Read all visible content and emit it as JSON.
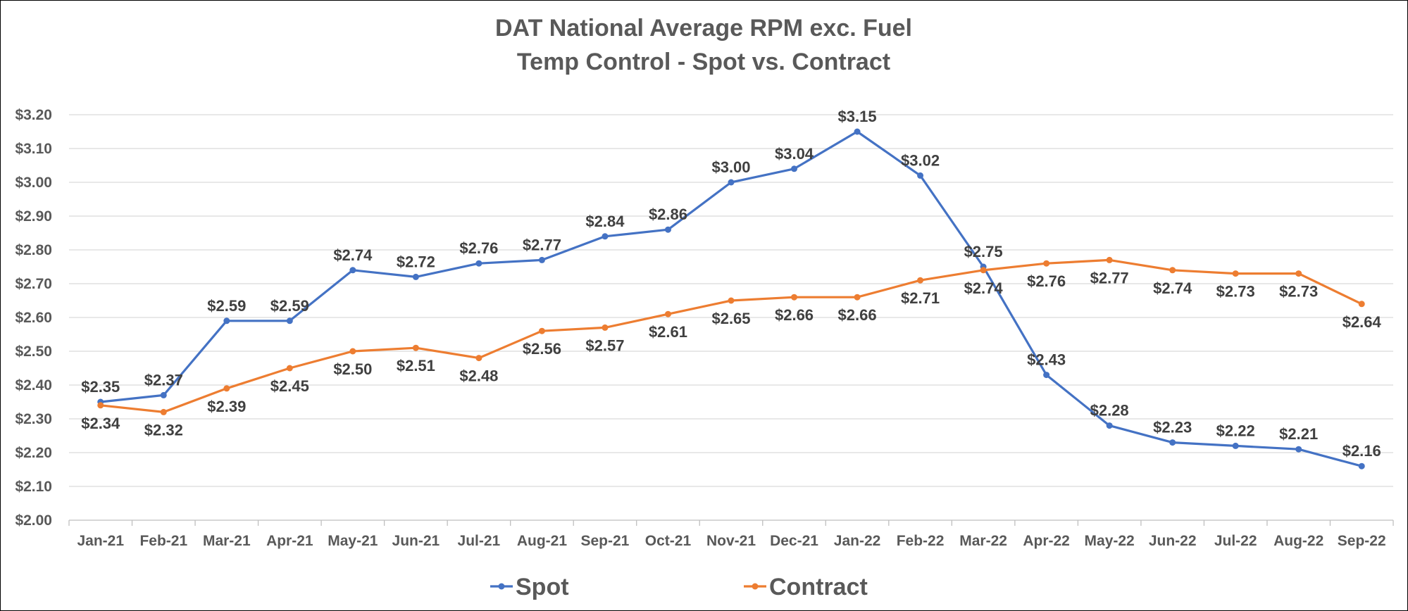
{
  "chart_data": {
    "type": "line",
    "title": [
      "DAT National Average RPM exc. Fuel",
      "Temp Control - Spot vs. Contract"
    ],
    "xlabel": "",
    "ylabel": "",
    "categories": [
      "Jan-21",
      "Feb-21",
      "Mar-21",
      "Apr-21",
      "May-21",
      "Jun-21",
      "Jul-21",
      "Aug-21",
      "Sep-21",
      "Oct-21",
      "Nov-21",
      "Dec-21",
      "Jan-22",
      "Feb-22",
      "Mar-22",
      "Apr-22",
      "May-22",
      "Jun-22",
      "Jul-22",
      "Aug-22",
      "Sep-22"
    ],
    "ylim": [
      2.0,
      3.2
    ],
    "ystep": 0.1,
    "ytick_labels": [
      "$2.00",
      "$2.10",
      "$2.20",
      "$2.30",
      "$2.40",
      "$2.50",
      "$2.60",
      "$2.70",
      "$2.80",
      "$2.90",
      "$3.00",
      "$3.10",
      "$3.20"
    ],
    "grid": true,
    "legend_position": "bottom",
    "series": [
      {
        "name": "Spot",
        "color": "#4472c4",
        "values": [
          2.35,
          2.37,
          2.59,
          2.59,
          2.74,
          2.72,
          2.76,
          2.77,
          2.84,
          2.86,
          3.0,
          3.04,
          3.15,
          3.02,
          2.75,
          2.43,
          2.28,
          2.23,
          2.22,
          2.21,
          2.16
        ],
        "labels": [
          "$2.35",
          "$2.37",
          "$2.59",
          "$2.59",
          "$2.74",
          "$2.72",
          "$2.76",
          "$2.77",
          "$2.84",
          "$2.86",
          "$3.00",
          "$3.04",
          "$3.15",
          "$3.02",
          "$2.75",
          "$2.43",
          "$2.28",
          "$2.23",
          "$2.22",
          "$2.21",
          "$2.16"
        ],
        "label_position": "above"
      },
      {
        "name": "Contract",
        "color": "#ed7d31",
        "values": [
          2.34,
          2.32,
          2.39,
          2.45,
          2.5,
          2.51,
          2.48,
          2.56,
          2.57,
          2.61,
          2.65,
          2.66,
          2.66,
          2.71,
          2.74,
          2.76,
          2.77,
          2.74,
          2.73,
          2.73,
          2.64
        ],
        "labels": [
          "$2.34",
          "$2.32",
          "$2.39",
          "$2.45",
          "$2.50",
          "$2.51",
          "$2.48",
          "$2.56",
          "$2.57",
          "$2.61",
          "$2.65",
          "$2.66",
          "$2.66",
          "$2.71",
          "$2.74",
          "$2.76",
          "$2.77",
          "$2.74",
          "$2.73",
          "$2.73",
          "$2.64"
        ],
        "label_position": "below"
      }
    ]
  }
}
